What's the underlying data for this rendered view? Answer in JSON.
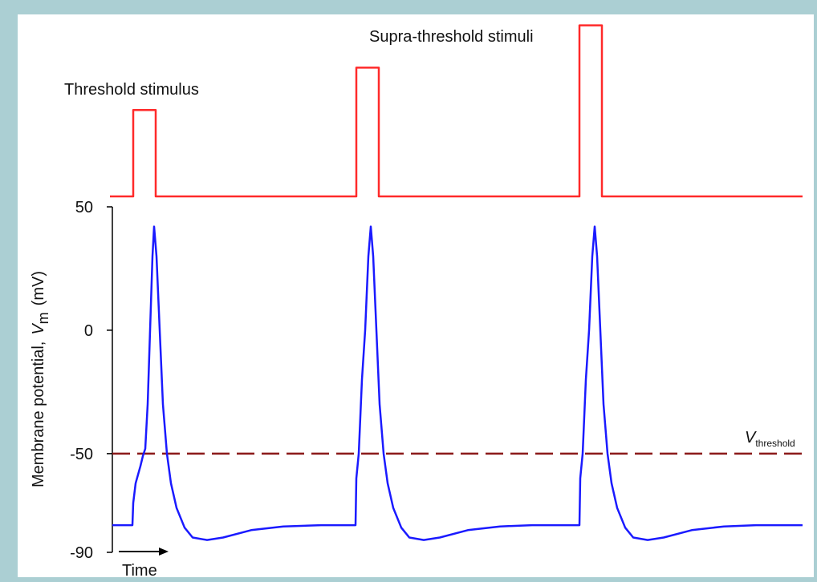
{
  "chart_data": {
    "type": "line",
    "ylabel": {
      "text": "Membrane potential,",
      "symbol": "V",
      "subscript": "m",
      "unit": "(mV)"
    },
    "xlabel": "Time",
    "annotations": [
      "Threshold stimulus",
      "Supra-threshold stimuli"
    ],
    "xlim": [
      -3,
      860
    ],
    "ylim": [
      -90,
      50
    ],
    "yticks": [
      50,
      0,
      -50,
      -90
    ],
    "y2lim": [
      0,
      100
    ],
    "threshold": {
      "value": -50,
      "color": "#8b1a1a",
      "symbol": "V",
      "subscript": "threshold"
    },
    "membrane_potential": {
      "color": "#1a1aff",
      "x": [
        0,
        25,
        26,
        29,
        35,
        38,
        41,
        44,
        47,
        50,
        52,
        55,
        59,
        63,
        68,
        73,
        80,
        90,
        100,
        118,
        138,
        173,
        213,
        260,
        303,
        304,
        307,
        311,
        315,
        319,
        322,
        325,
        329,
        333,
        338,
        343,
        350,
        360,
        370,
        388,
        408,
        443,
        483,
        523,
        582,
        583,
        586,
        590,
        594,
        598,
        601,
        604,
        608,
        612,
        617,
        622,
        629,
        639,
        649,
        667,
        687,
        722,
        762,
        802,
        860
      ],
      "values": [
        -79,
        -79,
        -70,
        -62,
        -55,
        -51,
        -48,
        -30,
        0,
        30,
        42,
        30,
        0,
        -30,
        -50,
        -62,
        -72,
        -80,
        -84,
        -85,
        -84,
        -81,
        -79.5,
        -79,
        -79,
        -60,
        -50,
        -20,
        0,
        30,
        42,
        30,
        0,
        -30,
        -50,
        -62,
        -72,
        -80,
        -84,
        -85,
        -84,
        -81,
        -79.5,
        -79,
        -79,
        -60,
        -50,
        -20,
        0,
        30,
        42,
        30,
        0,
        -30,
        -50,
        -62,
        -72,
        -80,
        -84,
        -85,
        -84,
        -81,
        -79.5,
        -79,
        -79
      ]
    },
    "stimulus": {
      "color": "#ff2a2a",
      "axis": "y2",
      "x": [
        -3,
        26,
        26,
        54,
        54,
        304,
        304,
        332,
        332,
        582,
        582,
        610,
        610,
        860
      ],
      "values": [
        0,
        0,
        49,
        49,
        0,
        0,
        73,
        73,
        0,
        0,
        97,
        97,
        0,
        0
      ]
    }
  }
}
